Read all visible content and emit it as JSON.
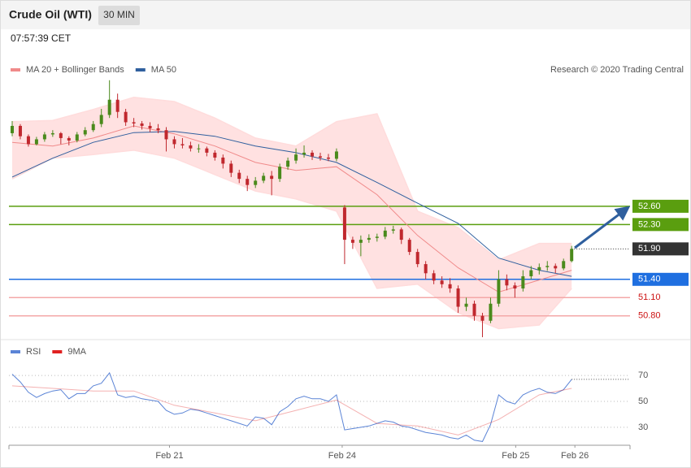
{
  "header": {
    "title": "Crude Oil (WTI)",
    "interval": "30 MIN",
    "time": "07:57:39 CET",
    "credit": "Research © 2020 Trading Central"
  },
  "chart_data": [
    {
      "type": "candlestick",
      "up_color": "#4a8a1c",
      "down_color": "#c0282e",
      "band_color": "#ffdcdc",
      "xlim": [
        -0.4,
        76.2
      ],
      "ylim": [
        50.45,
        54.72
      ],
      "candles": {
        "open": [
          53.8,
          53.92,
          53.75,
          53.62,
          53.7,
          53.78,
          53.8,
          53.72,
          53.68,
          53.78,
          53.85,
          53.95,
          54.1,
          54.35,
          54.15,
          53.98,
          53.96,
          53.92,
          53.88,
          53.85,
          53.7,
          53.62,
          53.6,
          53.55,
          53.55,
          53.48,
          53.4,
          53.3,
          53.15,
          53.05,
          52.95,
          53.02,
          53.1,
          53.05,
          53.25,
          53.35,
          53.45,
          53.48,
          53.42,
          53.4,
          53.38,
          52.58,
          52.05,
          52.0,
          52.05,
          52.08,
          52.1,
          52.2,
          52.22,
          52.05,
          51.85,
          51.65,
          51.5,
          51.38,
          51.32,
          51.25,
          50.95,
          51.0,
          50.8,
          50.72,
          51.0,
          51.4,
          51.3,
          51.25,
          51.45,
          51.55,
          51.6,
          51.62,
          51.58,
          51.7
        ],
        "high": [
          54.0,
          53.95,
          53.78,
          53.74,
          53.82,
          53.85,
          53.82,
          53.75,
          53.82,
          53.9,
          54.0,
          54.2,
          54.67,
          54.45,
          54.2,
          54.05,
          54.0,
          53.98,
          53.95,
          53.9,
          53.75,
          53.72,
          53.66,
          53.62,
          53.58,
          53.52,
          53.45,
          53.35,
          53.2,
          53.1,
          53.08,
          53.15,
          53.18,
          53.3,
          53.4,
          53.55,
          53.6,
          53.52,
          53.48,
          53.46,
          53.55,
          52.62,
          52.1,
          52.12,
          52.14,
          52.15,
          52.26,
          52.28,
          52.25,
          52.08,
          51.9,
          51.7,
          51.55,
          51.45,
          51.42,
          51.3,
          51.1,
          51.05,
          50.85,
          51.1,
          51.55,
          51.48,
          51.35,
          51.55,
          51.62,
          51.66,
          51.7,
          51.66,
          51.74,
          51.95
        ],
        "low": [
          53.75,
          53.7,
          53.58,
          53.6,
          53.66,
          53.74,
          53.62,
          53.6,
          53.65,
          53.75,
          53.82,
          53.9,
          54.05,
          54.05,
          53.92,
          53.9,
          53.86,
          53.82,
          53.8,
          53.5,
          53.55,
          53.55,
          53.5,
          53.48,
          53.42,
          53.35,
          53.22,
          53.08,
          52.98,
          52.85,
          52.9,
          52.98,
          52.78,
          53.0,
          53.2,
          53.3,
          53.4,
          53.36,
          53.35,
          53.34,
          53.34,
          51.65,
          51.9,
          51.78,
          52.0,
          52.02,
          52.06,
          52.15,
          51.98,
          51.8,
          51.6,
          51.4,
          51.32,
          51.26,
          51.18,
          50.85,
          50.88,
          50.72,
          50.45,
          50.68,
          50.95,
          51.22,
          51.1,
          51.2,
          51.4,
          51.48,
          51.54,
          51.5,
          51.55,
          51.68
        ],
        "close": [
          53.92,
          53.75,
          53.62,
          53.7,
          53.78,
          53.8,
          53.72,
          53.68,
          53.78,
          53.85,
          53.95,
          54.1,
          54.35,
          54.15,
          53.98,
          53.96,
          53.92,
          53.88,
          53.85,
          53.7,
          53.62,
          53.6,
          53.55,
          53.55,
          53.48,
          53.4,
          53.3,
          53.15,
          53.05,
          52.95,
          53.02,
          53.1,
          53.05,
          53.25,
          53.35,
          53.45,
          53.48,
          53.42,
          53.4,
          53.38,
          53.5,
          52.05,
          52.0,
          52.05,
          52.08,
          52.1,
          52.2,
          52.22,
          52.05,
          51.85,
          51.65,
          51.5,
          51.38,
          51.32,
          51.25,
          50.95,
          51.0,
          50.8,
          50.72,
          51.0,
          51.4,
          51.3,
          51.25,
          51.45,
          51.55,
          51.6,
          51.62,
          51.58,
          51.7,
          51.9
        ]
      },
      "series": [
        {
          "name": "MA 20 + Bollinger Bands",
          "color": "#f08a8a",
          "x": [
            0,
            5,
            10,
            15,
            20,
            25,
            30,
            35,
            40,
            45,
            50,
            55,
            60,
            65,
            69
          ],
          "values": [
            53.65,
            53.59,
            53.72,
            53.92,
            53.79,
            53.59,
            53.32,
            53.19,
            53.25,
            52.79,
            52.12,
            51.59,
            51.19,
            51.39,
            51.55
          ],
          "upper": [
            53.99,
            54.01,
            54.19,
            54.39,
            54.32,
            54.05,
            53.72,
            53.59,
            53.99,
            54.12,
            52.52,
            52.25,
            51.72,
            51.99,
            51.99
          ],
          "lower": [
            53.05,
            53.39,
            53.45,
            53.52,
            53.39,
            53.12,
            52.85,
            52.72,
            52.52,
            51.25,
            51.32,
            50.85,
            50.59,
            50.65,
            51.25
          ]
        },
        {
          "name": "MA 50",
          "color": "#2f5f9e",
          "x": [
            0,
            5,
            10,
            15,
            20,
            25,
            30,
            35,
            40,
            45,
            50,
            55,
            60,
            65,
            69
          ],
          "values": [
            53.08,
            53.39,
            53.65,
            53.81,
            53.83,
            53.75,
            53.59,
            53.48,
            53.32,
            52.99,
            52.65,
            52.32,
            51.75,
            51.55,
            51.45
          ]
        }
      ],
      "levels": [
        {
          "value": 52.6,
          "label": "52.60",
          "color": "#5a9e0f",
          "line": "solid",
          "box": true
        },
        {
          "value": 52.3,
          "label": "52.30",
          "color": "#5a9e0f",
          "line": "solid",
          "box": true
        },
        {
          "value": 51.9,
          "label": "51.90",
          "color": "#333333",
          "line": "dotted",
          "box": true
        },
        {
          "value": 51.4,
          "label": "51.40",
          "color": "#1f6fe0",
          "line": "solid",
          "box": true
        },
        {
          "value": 51.1,
          "label": "51.10",
          "color": "#f4a8a8",
          "text_color": "#cc1111",
          "line": "solid",
          "box": false
        },
        {
          "value": 50.8,
          "label": "50.80",
          "color": "#f4a8a8",
          "text_color": "#cc1111",
          "line": "solid",
          "box": false
        }
      ]
    },
    {
      "type": "line",
      "xlim": [
        -0.4,
        76.2
      ],
      "ylim": [
        18,
        87
      ],
      "yticks": [
        30,
        50,
        70
      ],
      "xticks": [
        {
          "value": 19.4,
          "label": "Feb 21"
        },
        {
          "value": 40.7,
          "label": "Feb 24"
        },
        {
          "value": 62.1,
          "label": "Feb 25"
        },
        {
          "value": 69.4,
          "label": "Feb 26"
        }
      ],
      "series": [
        {
          "name": "RSI",
          "color": "#5b84d6",
          "values": [
            71,
            65,
            57,
            53,
            56,
            58,
            59,
            52,
            56,
            56,
            62,
            64,
            72,
            55,
            53,
            54,
            52,
            51,
            50,
            43,
            40,
            41,
            44,
            43,
            41,
            39,
            37,
            35,
            33,
            31,
            38,
            37,
            32,
            42,
            46,
            52,
            54,
            52,
            52,
            50,
            55,
            28,
            29,
            30,
            31,
            33,
            35,
            34,
            31,
            30,
            28,
            26,
            25,
            24,
            22,
            21,
            24,
            20,
            19,
            32,
            55,
            50,
            48,
            55,
            58,
            60,
            57,
            56,
            59,
            67
          ]
        },
        {
          "name": "9MA",
          "color": "#e02020",
          "x": [
            0,
            5,
            10,
            15,
            20,
            25,
            30,
            35,
            40,
            45,
            50,
            55,
            60,
            65,
            69
          ],
          "values": [
            62,
            60,
            58,
            58,
            47,
            41,
            35,
            43,
            51,
            33,
            31,
            24,
            36,
            55,
            60
          ]
        }
      ]
    }
  ]
}
